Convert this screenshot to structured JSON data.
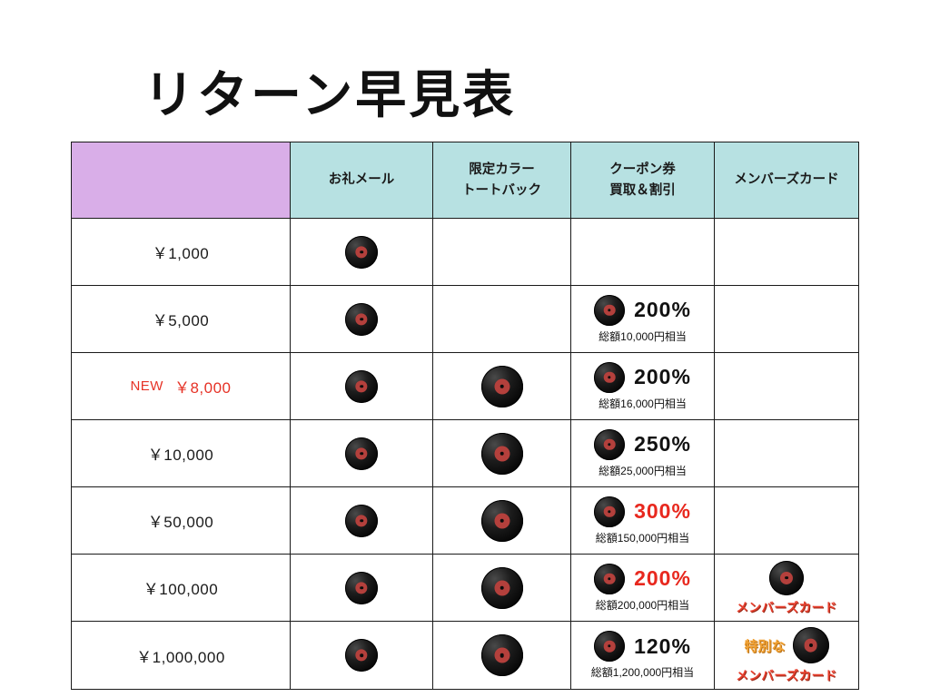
{
  "page": {
    "title": "リターン早見表"
  },
  "table": {
    "headers": {
      "tier": "",
      "mail": "お礼メール",
      "tote_line1": "限定カラー",
      "tote_line2": "トートバック",
      "coupon_line1": "クーポン券",
      "coupon_line2": "買取＆割引",
      "member": "メンバーズカード"
    },
    "rows": [
      {
        "badge": "",
        "tier": "￥1,000",
        "percent": "",
        "total": ""
      },
      {
        "badge": "",
        "tier": "￥5,000",
        "percent": "200%",
        "total": "総額10,000円相当"
      },
      {
        "badge": "NEW",
        "tier": "￥8,000",
        "percent": "200%",
        "total": "総額16,000円相当"
      },
      {
        "badge": "",
        "tier": "￥10,000",
        "percent": "250%",
        "total": "総額25,000円相当"
      },
      {
        "badge": "",
        "tier": "￥50,000",
        "percent": "300%",
        "total": "総額150,000円相当"
      },
      {
        "badge": "",
        "tier": "￥100,000",
        "percent": "200%",
        "total": "総額200,000円相当",
        "member_label": "メンバーズカード"
      },
      {
        "badge": "",
        "tier": "￥1,000,000",
        "percent": "120%",
        "total": "総額1,200,000円相当",
        "member_label_line1": "特別な",
        "member_label_line2": "メンバーズカード"
      }
    ]
  },
  "icons": {
    "record": "vinyl-record-icon"
  },
  "colors": {
    "tier_header_bg": "#d9aee8",
    "header_bg": "#b7e1e2",
    "accent_red": "#e8281e",
    "accent_orange": "#f2a233",
    "record_label_red": "#b4403c"
  }
}
